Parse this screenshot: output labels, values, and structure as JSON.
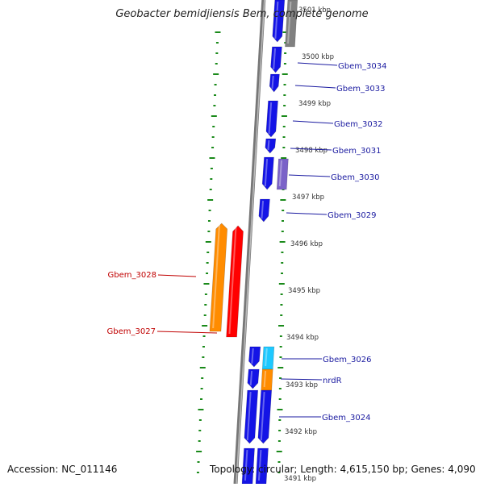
{
  "title": "Geobacter bemidjiensis Bem, complete genome",
  "footer": {
    "accession": "Accession: NC_011146",
    "summary": "Topology: circular; Length: 4,615,150 bp; Genes: 4,090"
  },
  "colors": {
    "forward_gene": "#1414e6",
    "reverse_gene": "#ff0000",
    "reverse_cds": "#ff8c00",
    "rna": "#1ec8ff",
    "pseudo": "#7a62c8",
    "other": "#808080",
    "backbone": "#777777",
    "ticks": "#1a8a1a",
    "forward_label": "#1a1aa0",
    "reverse_label": "#c00000"
  },
  "scale": {
    "labels": [
      "3501 kbp",
      "3500 kbp",
      "3499 kbp",
      "3498 kbp",
      "3497 kbp",
      "3496 kbp",
      "3495 kbp",
      "3494 kbp",
      "3493 kbp",
      "3492 kbp",
      "3491 kbp"
    ]
  },
  "forward_labels": [
    "Gbem_3034",
    "Gbem_3033",
    "Gbem_3032",
    "Gbem_3031",
    "Gbem_3030",
    "Gbem_3029",
    "Gbem_3026",
    "nrdR",
    "Gbem_3024"
  ],
  "reverse_labels": [
    "Gbem_3028",
    "Gbem_3027"
  ]
}
